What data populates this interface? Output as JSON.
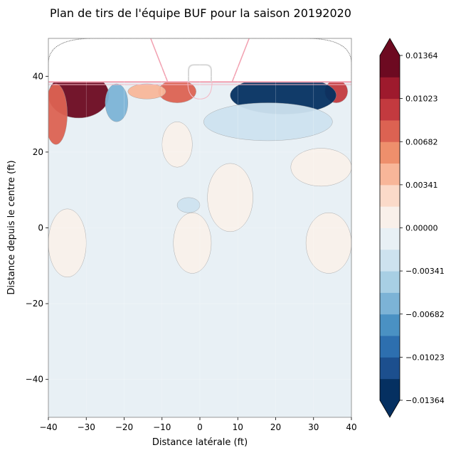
{
  "chart_data": {
    "type": "heatmap",
    "title": "Plan de tirs de l'équipe BUF pour la saison 20192020",
    "xlabel": "Distance latérale (ft)",
    "ylabel": "Distance depuis le centre (ft)",
    "xlim": [
      -40,
      40
    ],
    "ylim": [
      -50,
      50
    ],
    "x_ticks": [
      -40,
      -30,
      -20,
      -10,
      0,
      10,
      20,
      30,
      40
    ],
    "y_ticks": [
      40,
      20,
      0,
      -20,
      -40
    ],
    "x_tick_labels": [
      "−40",
      "−30",
      "−20",
      "−10",
      "0",
      "10",
      "20",
      "30",
      "40"
    ],
    "y_tick_labels": [
      "40",
      "20",
      "0",
      "−20",
      "−40"
    ],
    "grid": true,
    "colormap": "RdBu_r",
    "colorbar": {
      "min": -0.01364,
      "max": 0.01364,
      "levels": 16,
      "extend": "both",
      "tick_values": [
        0.01364,
        0.01023,
        0.00682,
        0.00341,
        0.0,
        -0.00341,
        -0.00682,
        -0.01023,
        -0.01364
      ],
      "tick_labels": [
        "0.01364",
        "0.01023",
        "0.00682",
        "0.00341",
        "0.00000",
        "−0.00341",
        "−0.00682",
        "−0.01023",
        "−0.01364"
      ],
      "colors": [
        "#053061",
        "#1c4f8e",
        "#2d6faf",
        "#4a91c3",
        "#7cb3d6",
        "#a8cfe4",
        "#cde2ef",
        "#e8f0f5",
        "#f9f0ea",
        "#fbdac9",
        "#f8b699",
        "#ee8f6c",
        "#dc6252",
        "#c33a3f",
        "#9e1a2d",
        "#6d0a21"
      ]
    },
    "background_value": -0.0005,
    "regions": [
      {
        "name": "hot-left-corner",
        "value": 0.0125,
        "cx": -32,
        "cy": 35,
        "rx": 8,
        "ry": 6
      },
      {
        "name": "warm-left-edge",
        "value": 0.0075,
        "cx": -38,
        "cy": 30,
        "rx": 3,
        "ry": 8
      },
      {
        "name": "hot-center-left",
        "value": 0.0085,
        "cx": -6,
        "cy": 36,
        "rx": 5,
        "ry": 3
      },
      {
        "name": "warm-left-mid",
        "value": 0.0045,
        "cx": -14,
        "cy": 36,
        "rx": 5,
        "ry": 2
      },
      {
        "name": "hot-right-corner",
        "value": 0.0095,
        "cx": 36,
        "cy": 36,
        "rx": 3,
        "ry": 3
      },
      {
        "name": "cold-center-right",
        "value": -0.0135,
        "cx": 22,
        "cy": 35,
        "rx": 14,
        "ry": 5
      },
      {
        "name": "cool-left-slot",
        "value": -0.0055,
        "cx": -22,
        "cy": 33,
        "rx": 3,
        "ry": 5
      },
      {
        "name": "cool-right-band",
        "value": -0.003,
        "cx": 18,
        "cy": 28,
        "rx": 17,
        "ry": 5
      },
      {
        "name": "warm-blob-left",
        "value": 0.0015,
        "cx": -6,
        "cy": 22,
        "rx": 4,
        "ry": 6
      },
      {
        "name": "warm-blob-right",
        "value": 0.001,
        "cx": 32,
        "cy": 16,
        "rx": 8,
        "ry": 5
      },
      {
        "name": "warm-blob-center",
        "value": 0.001,
        "cx": 8,
        "cy": 8,
        "rx": 6,
        "ry": 9
      },
      {
        "name": "warm-blob-lower-left",
        "value": 0.0008,
        "cx": -35,
        "cy": -4,
        "rx": 5,
        "ry": 9
      },
      {
        "name": "warm-blob-lower-mid",
        "value": 0.0008,
        "cx": -2,
        "cy": -4,
        "rx": 5,
        "ry": 8
      },
      {
        "name": "warm-blob-lower-right",
        "value": 0.0008,
        "cx": 34,
        "cy": -4,
        "rx": 6,
        "ry": 8
      },
      {
        "name": "cool-blob-mid",
        "value": -0.0025,
        "cx": -3,
        "cy": 6,
        "rx": 3,
        "ry": 2
      }
    ]
  }
}
